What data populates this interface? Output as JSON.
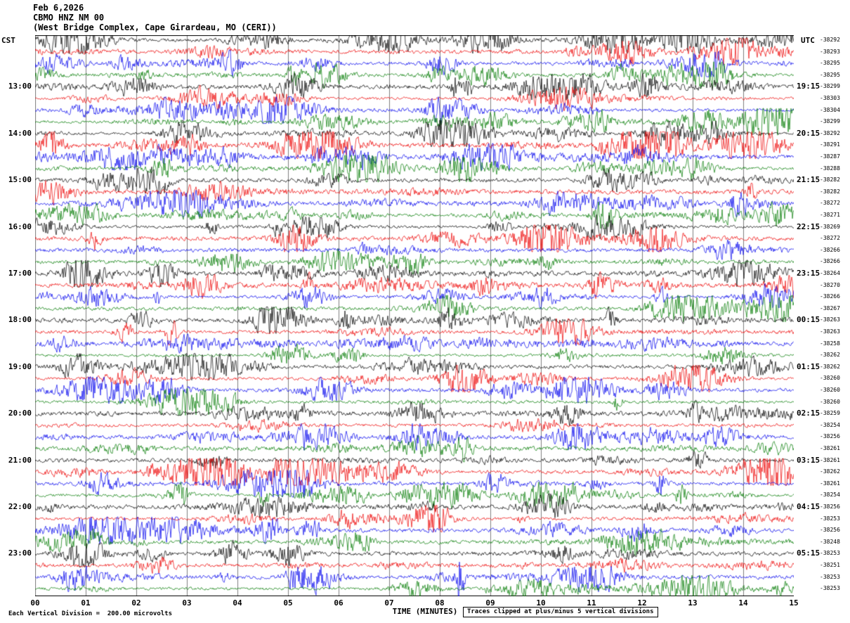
{
  "header": {
    "date": "Feb 6,2026",
    "station": "CBMO HNZ NM 00",
    "location": "(West Bridge Complex, Cape Girardeau, MO (CERI))"
  },
  "axes": {
    "left_tz": "CST",
    "right_tz": "UTC",
    "xlabel": "TIME (MINUTES)",
    "x_ticks": [
      "00",
      "01",
      "02",
      "03",
      "04",
      "05",
      "06",
      "07",
      "08",
      "09",
      "10",
      "11",
      "12",
      "13",
      "14",
      "15"
    ]
  },
  "footer": {
    "scale_note": "Each Vertical Division =  200.00 microvolts",
    "clip_note": "Traces clipped at plus/minus 5 vertical divisions"
  },
  "colors": {
    "black": "#000000",
    "red": "#ee0000",
    "blue": "#0000ee",
    "green": "#007a00",
    "grid": "#7f7f7f",
    "border": "#000000"
  },
  "chart_data": {
    "type": "line",
    "title": "CBMO HNZ NM 00 helicorder record, Feb 6,2026",
    "x_unit": "minutes",
    "x_range": [
      0,
      15
    ],
    "minutes_per_line": 15,
    "clip_divisions": 5,
    "microvolts_per_division": "200.00",
    "trace_color_cycle": [
      "black",
      "red",
      "blue",
      "green"
    ],
    "events": [
      {
        "row_index": 46,
        "minute": 8.4,
        "amplitude_divisions": 12
      }
    ],
    "rows": [
      {
        "c": "black",
        "l": "",
        "r": "",
        "o": "-38292"
      },
      {
        "c": "red",
        "l": "",
        "r": "",
        "o": "-38293"
      },
      {
        "c": "blue",
        "l": "",
        "r": "",
        "o": "-38295"
      },
      {
        "c": "green",
        "l": "",
        "r": "",
        "o": "-38295"
      },
      {
        "c": "black",
        "l": "13:00",
        "r": "19:15",
        "o": "-38299"
      },
      {
        "c": "red",
        "l": "",
        "r": "",
        "o": "-38303"
      },
      {
        "c": "blue",
        "l": "",
        "r": "",
        "o": "-38304"
      },
      {
        "c": "green",
        "l": "",
        "r": "",
        "o": "-38299"
      },
      {
        "c": "black",
        "l": "14:00",
        "r": "20:15",
        "o": "-38292"
      },
      {
        "c": "red",
        "l": "",
        "r": "",
        "o": "-38291"
      },
      {
        "c": "blue",
        "l": "",
        "r": "",
        "o": "-38287"
      },
      {
        "c": "green",
        "l": "",
        "r": "",
        "o": "-38288"
      },
      {
        "c": "black",
        "l": "15:00",
        "r": "21:15",
        "o": "-38282"
      },
      {
        "c": "red",
        "l": "",
        "r": "",
        "o": "-38282"
      },
      {
        "c": "blue",
        "l": "",
        "r": "",
        "o": "-38272"
      },
      {
        "c": "green",
        "l": "",
        "r": "",
        "o": "-38271"
      },
      {
        "c": "black",
        "l": "16:00",
        "r": "22:15",
        "o": "-38269"
      },
      {
        "c": "red",
        "l": "",
        "r": "",
        "o": "-38272"
      },
      {
        "c": "blue",
        "l": "",
        "r": "",
        "o": "-38266"
      },
      {
        "c": "green",
        "l": "",
        "r": "",
        "o": "-38266"
      },
      {
        "c": "black",
        "l": "17:00",
        "r": "23:15",
        "o": "-38264"
      },
      {
        "c": "red",
        "l": "",
        "r": "",
        "o": "-38270"
      },
      {
        "c": "blue",
        "l": "",
        "r": "",
        "o": "-38266"
      },
      {
        "c": "green",
        "l": "",
        "r": "",
        "o": "-38267"
      },
      {
        "c": "black",
        "l": "18:00",
        "r": "00:15",
        "o": "-38263"
      },
      {
        "c": "red",
        "l": "",
        "r": "",
        "o": "-38263"
      },
      {
        "c": "blue",
        "l": "",
        "r": "",
        "o": "-38258"
      },
      {
        "c": "green",
        "l": "",
        "r": "",
        "o": "-38262"
      },
      {
        "c": "black",
        "l": "19:00",
        "r": "01:15",
        "o": "-38262"
      },
      {
        "c": "red",
        "l": "",
        "r": "",
        "o": "-38260"
      },
      {
        "c": "blue",
        "l": "",
        "r": "",
        "o": "-38260"
      },
      {
        "c": "green",
        "l": "",
        "r": "",
        "o": "-38260"
      },
      {
        "c": "black",
        "l": "20:00",
        "r": "02:15",
        "o": "-38259"
      },
      {
        "c": "red",
        "l": "",
        "r": "",
        "o": "-38254"
      },
      {
        "c": "blue",
        "l": "",
        "r": "",
        "o": "-38256"
      },
      {
        "c": "green",
        "l": "",
        "r": "",
        "o": "-38261"
      },
      {
        "c": "black",
        "l": "21:00",
        "r": "03:15",
        "o": "-38261"
      },
      {
        "c": "red",
        "l": "",
        "r": "",
        "o": "-38262"
      },
      {
        "c": "blue",
        "l": "",
        "r": "",
        "o": "-38261"
      },
      {
        "c": "green",
        "l": "",
        "r": "",
        "o": "-38254"
      },
      {
        "c": "black",
        "l": "22:00",
        "r": "04:15",
        "o": "-38256"
      },
      {
        "c": "red",
        "l": "",
        "r": "",
        "o": "-38253"
      },
      {
        "c": "blue",
        "l": "",
        "r": "",
        "o": "-38256"
      },
      {
        "c": "green",
        "l": "",
        "r": "",
        "o": "-38248"
      },
      {
        "c": "black",
        "l": "23:00",
        "r": "05:15",
        "o": "-38253"
      },
      {
        "c": "red",
        "l": "",
        "r": "",
        "o": "-38251"
      },
      {
        "c": "blue",
        "l": "",
        "r": "",
        "o": "-38253"
      },
      {
        "c": "green",
        "l": "",
        "r": "",
        "o": "-38253"
      }
    ]
  }
}
